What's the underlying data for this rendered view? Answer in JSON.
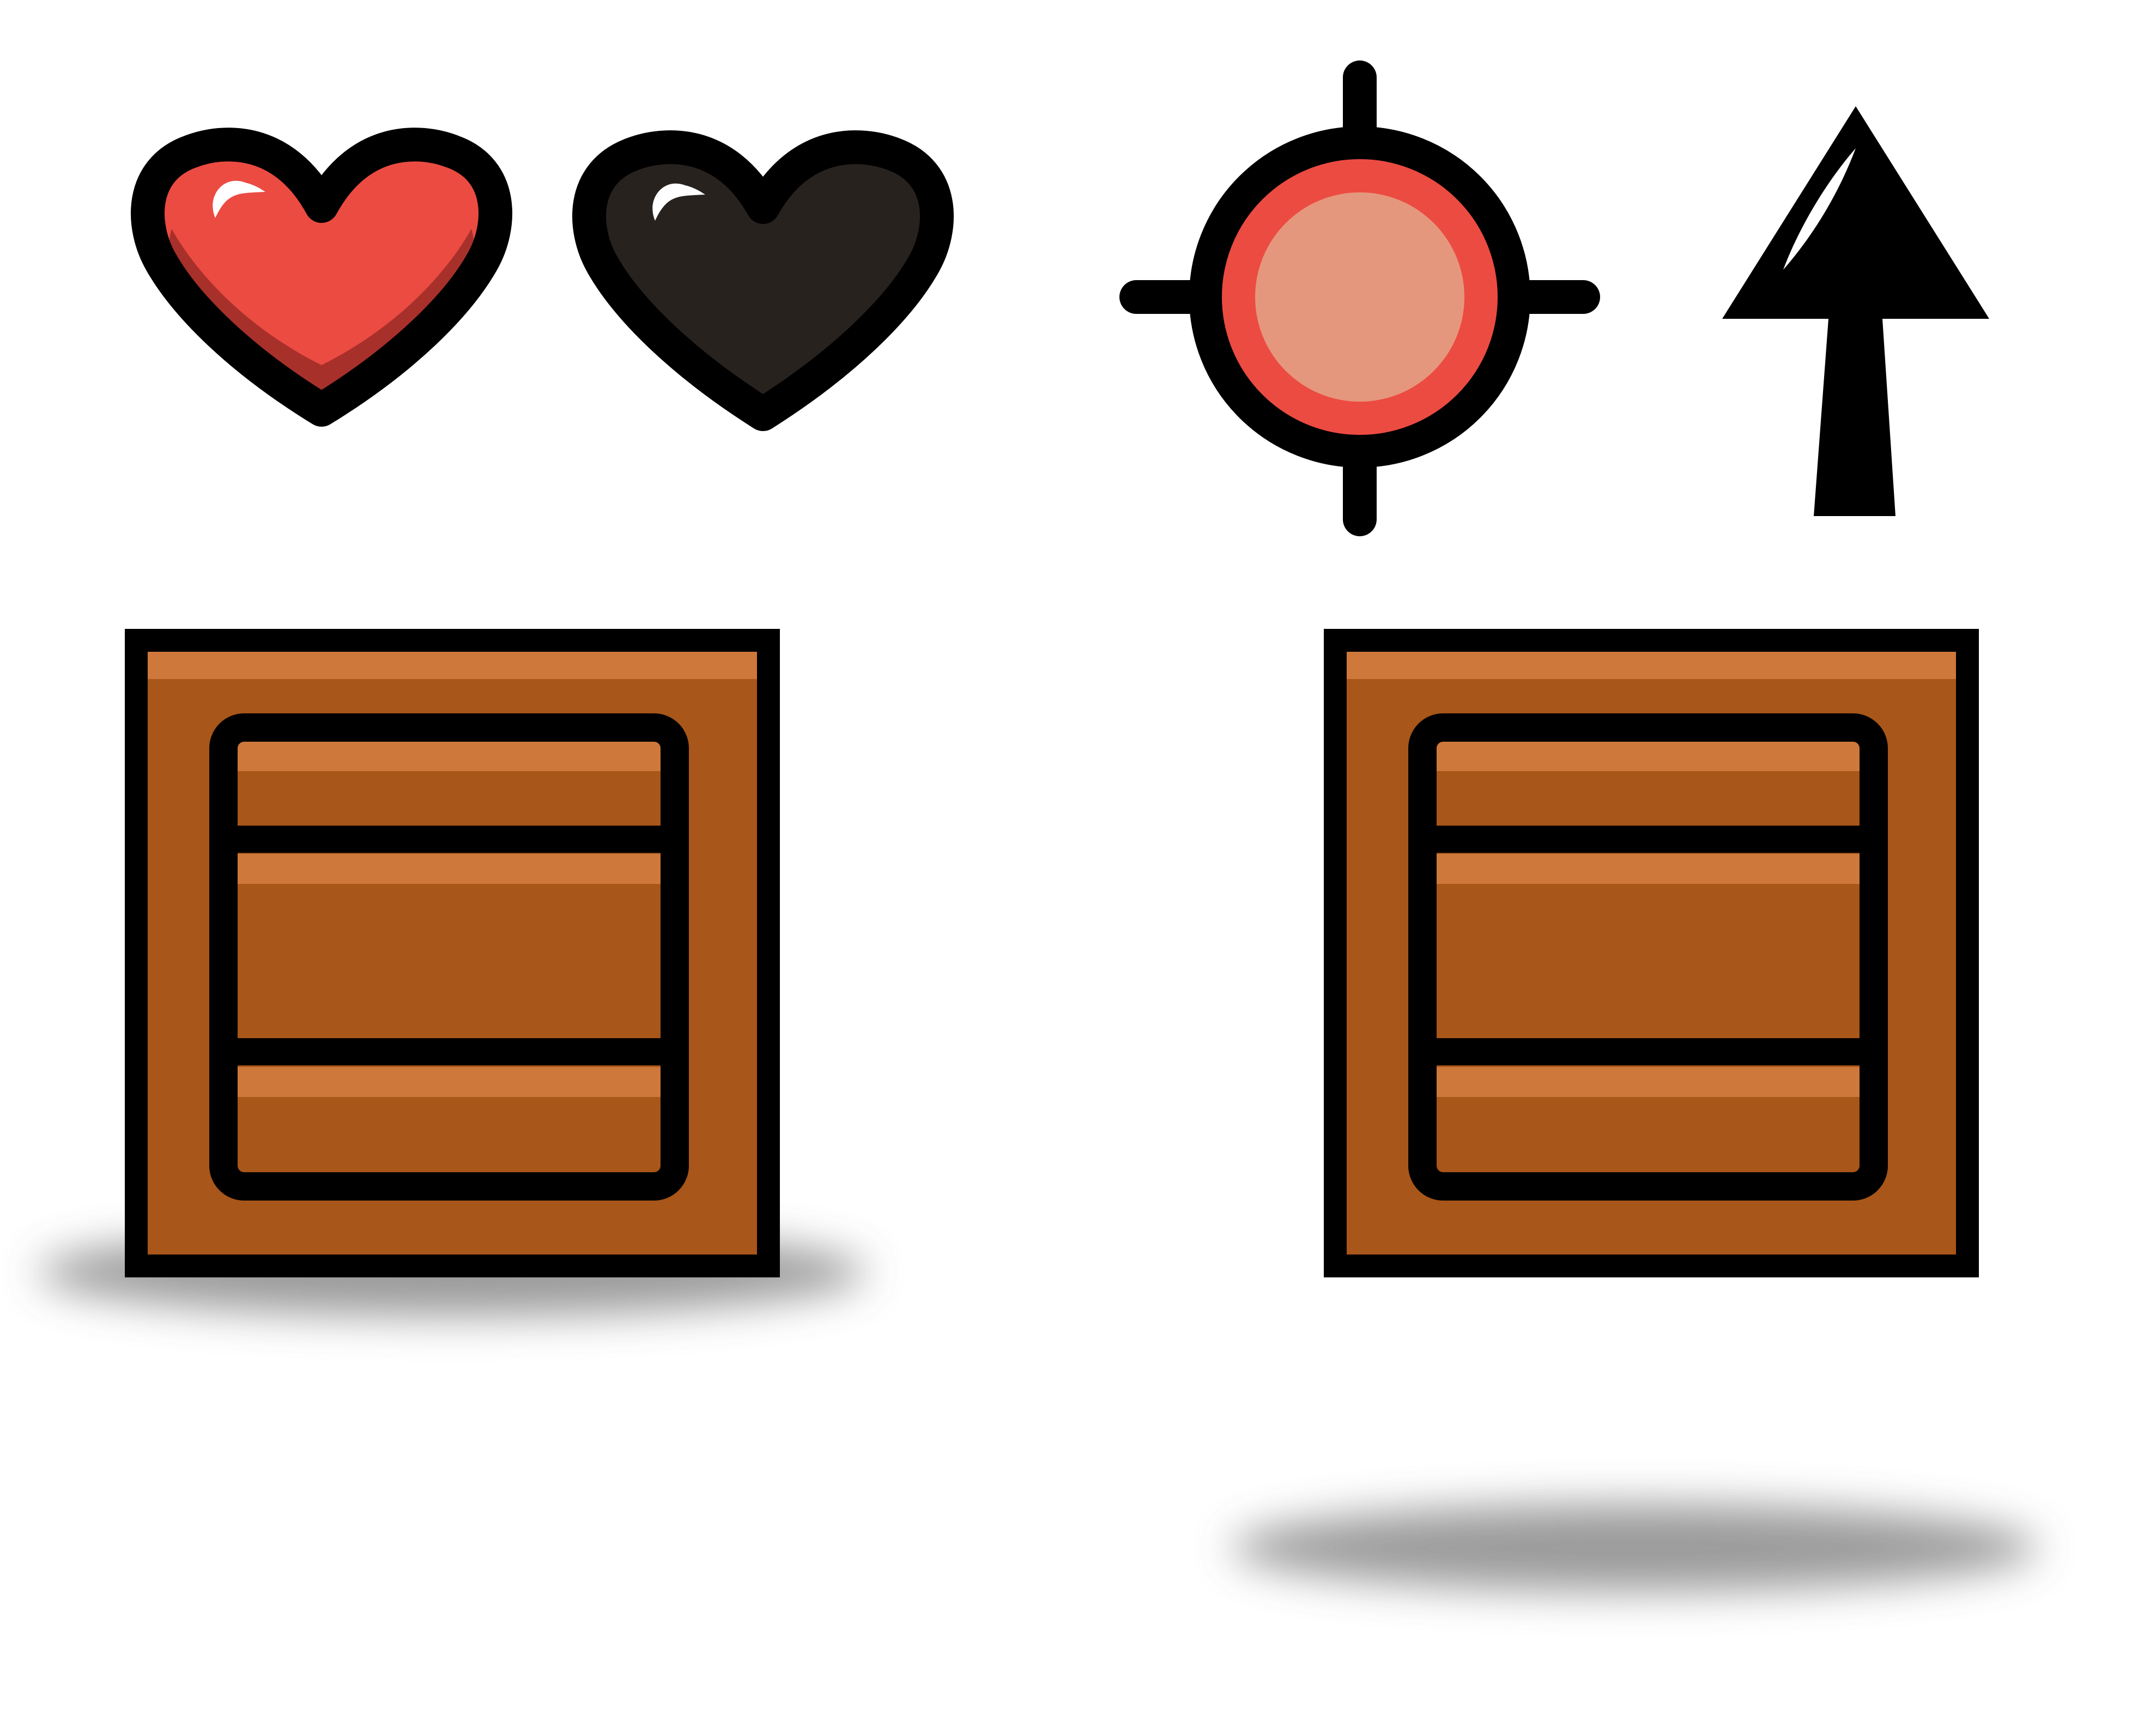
{
  "scene": {
    "background": "#ffffff",
    "hud": {
      "lives_total": 2,
      "lives_remaining": 1
    },
    "icons": [
      "heart-full-icon",
      "heart-empty-icon",
      "crosshair-target-icon",
      "arrow-up-icon"
    ],
    "crates": [
      {
        "state": "grounded"
      },
      {
        "state": "airborne"
      }
    ]
  },
  "colors": {
    "outline": "#000000",
    "heart_full": "#ec4b42",
    "heart_full_shade": "#a8302b",
    "heart_empty": "#28221e",
    "highlight": "#ffffff",
    "target_ring": "#ec4b42",
    "target_center": "#e5977d",
    "crate_body": "#a85619",
    "crate_highlight": "#cf783c",
    "shadow": "#8a8a8a"
  }
}
